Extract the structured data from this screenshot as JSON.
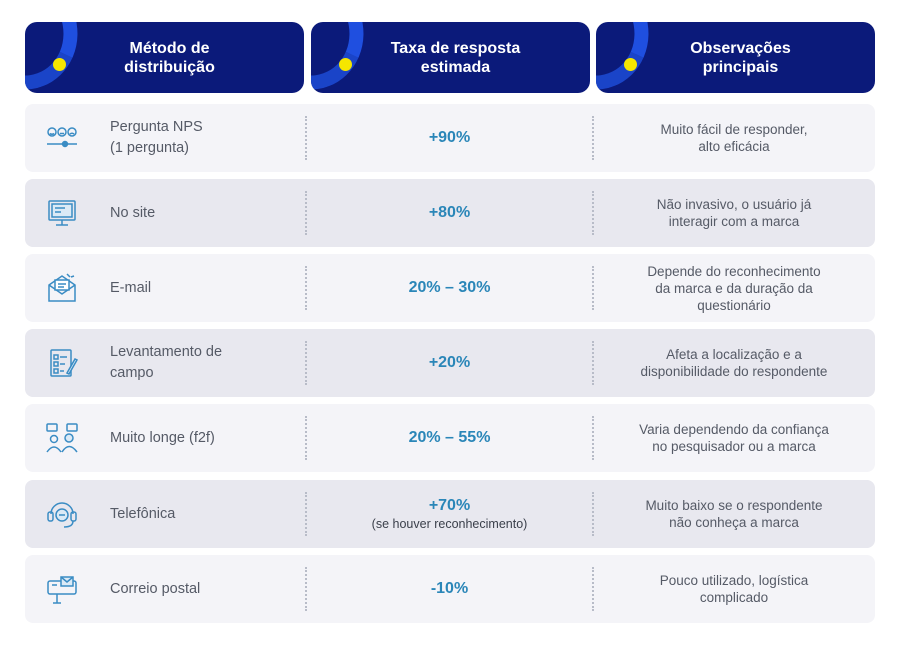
{
  "headers": {
    "method": "Método de\ndistribuição",
    "rate": "Taxa de resposta\nestimada",
    "notes": "Observações\nprincipais"
  },
  "colors": {
    "header_bg": "#0b1a7a",
    "accent_dot": "#f5e600",
    "rate_text": "#2a86b8",
    "icon": "#3a8cc4"
  },
  "rows": [
    {
      "icon": "nps-faces-icon",
      "method": "Pergunta NPS\n(1 pergunta)",
      "rate": "+90%",
      "rate_sub": "",
      "note": "Muito fácil de responder,\nalto eficácia"
    },
    {
      "icon": "website-monitor-icon",
      "method": "No site",
      "rate": "+80%",
      "rate_sub": "",
      "note": "Não invasivo, o usuário já\ninteragir com a marca"
    },
    {
      "icon": "email-envelope-icon",
      "method": "E-mail",
      "rate": "20% – 30%",
      "rate_sub": "",
      "note": "Depende do reconhecimento\nda marca e da duração da\nquestionário"
    },
    {
      "icon": "survey-form-icon",
      "method": "Levantamento de\ncampo",
      "rate": "+20%",
      "rate_sub": "",
      "note": "Afeta a localização e a\ndisponibilidade do respondente"
    },
    {
      "icon": "face-to-face-icon",
      "method": "Muito longe (f2f)",
      "rate": "20% – 55%",
      "rate_sub": "",
      "note": "Varia dependendo da confiança\nno pesquisador ou a marca"
    },
    {
      "icon": "headset-icon",
      "method": "Telefônica",
      "rate": "+70%",
      "rate_sub": "(se houver reconhecimento)",
      "note": "Muito baixo se o respondente\nnão  conheça a marca"
    },
    {
      "icon": "mailbox-icon",
      "method": "Correio postal",
      "rate": "-10%",
      "rate_sub": "",
      "note": "Pouco utilizado, logística\ncomplicado"
    }
  ]
}
